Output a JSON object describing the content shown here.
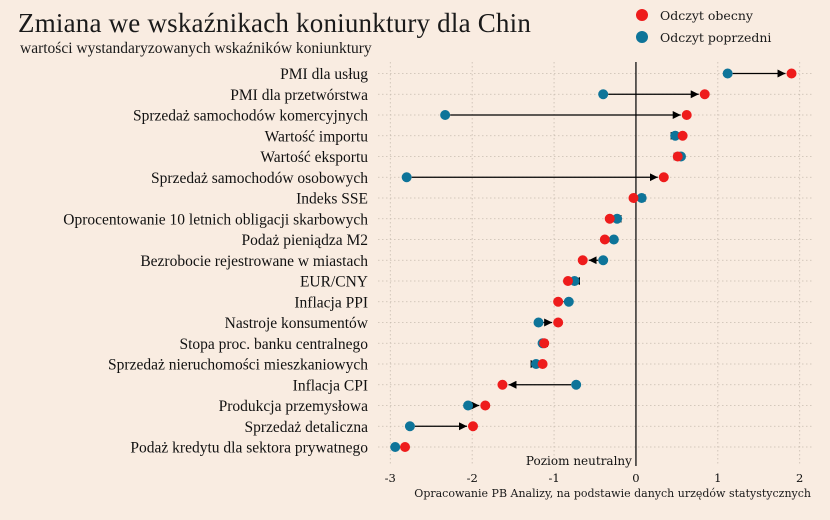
{
  "title": "Zmiana we wskaźnikach koniunktury dla Chin",
  "subtitle": "wartości wystandaryzowanych wskaźników koniunktury",
  "footer": "Opracowanie PB Analizy, na podstawie danych urzędów statystycznych",
  "legend": [
    {
      "label": "Odczyt obecny",
      "color": "#ee1c1c"
    },
    {
      "label": "Odczyt poprzedni",
      "color": "#0e7499"
    }
  ],
  "chart_data": {
    "type": "dumbbell",
    "xlim": [
      -3.15,
      2.15
    ],
    "x_ticks": [
      -3,
      -2,
      -1,
      0,
      1,
      2
    ],
    "x_tick_labels": [
      "-3",
      "-2",
      "-1",
      "0",
      "1",
      "2"
    ],
    "neutral_label": "Poziom neutralny",
    "grid": true,
    "legend_position": "top-right",
    "colors": {
      "current": "#ee1c1c",
      "previous": "#0e7499"
    },
    "categories": [
      "PMI dla usług",
      "PMI dla przetwórstwa",
      "Sprzedaż samochodów komercyjnych",
      "Wartość importu",
      "Wartość eksportu",
      "Sprzedaż samochodów osobowych",
      "Indeks SSE",
      "Oprocentowanie 10 letnich obligacji skarbowych",
      "Podaż pieniądza M2",
      "Bezrobocie rejestrowane w miastach",
      "EUR/CNY",
      "Inflacja PPI",
      "Nastroje konsumentów",
      "Stopa proc. banku centralnego",
      "Sprzedaż nieruchomości mieszkaniowych",
      "Inflacja CPI",
      "Produkcja przemysłowa",
      "Sprzedaż detaliczna",
      "Podaż kredytu dla sektora prywatnego"
    ],
    "series": [
      {
        "name": "Odczyt obecny",
        "values": [
          1.9,
          0.84,
          0.62,
          0.57,
          0.51,
          0.34,
          -0.03,
          -0.32,
          -0.38,
          -0.65,
          -0.83,
          -0.95,
          -0.95,
          -1.12,
          -1.14,
          -1.63,
          -1.84,
          -1.99,
          -2.82
        ]
      },
      {
        "name": "Odczyt poprzedni",
        "values": [
          1.12,
          -0.4,
          -2.33,
          0.48,
          0.55,
          -2.8,
          0.07,
          -0.23,
          -0.27,
          -0.4,
          -0.75,
          -0.82,
          -1.19,
          -1.14,
          -1.22,
          -0.73,
          -2.05,
          -2.76,
          -2.94
        ]
      }
    ]
  }
}
